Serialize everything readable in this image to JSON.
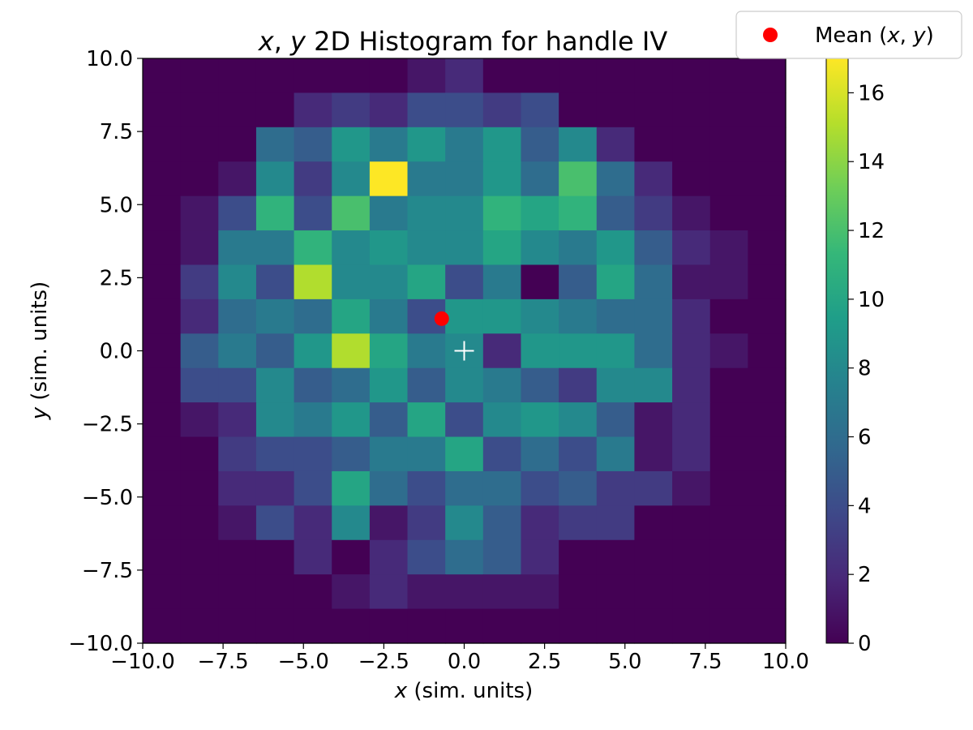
{
  "chart_data": {
    "type": "heatmap",
    "title_parts": [
      "x",
      ", ",
      "y",
      " 2D Histogram for handle IV"
    ],
    "xlabel_parts": [
      "x",
      " (sim. units)"
    ],
    "ylabel_parts": [
      "y",
      " (sim. units)"
    ],
    "xlim": [
      -10,
      10
    ],
    "ylim": [
      -10,
      10
    ],
    "x_bins": 17,
    "y_bins": 17,
    "x_ticks": [
      "−10.0",
      "−7.5",
      "−5.0",
      "−2.5",
      "0.0",
      "2.5",
      "5.0",
      "7.5",
      "10.0"
    ],
    "y_ticks": [
      "−10.0",
      "−7.5",
      "−5.0",
      "−2.5",
      "0.0",
      "2.5",
      "5.0",
      "7.5",
      "10.0"
    ],
    "colorbar_range": [
      0,
      17
    ],
    "colorbar_ticks": [
      "0",
      "2",
      "4",
      "6",
      "8",
      "10",
      "12",
      "14",
      "16"
    ],
    "colormap": "viridis",
    "counts_note": "rows listed from top (y=10) to bottom (y=-10), columns left (x=-10) to right (x=10)",
    "counts": [
      [
        0,
        0,
        0,
        0,
        0,
        0,
        0,
        1,
        2,
        0,
        0,
        0,
        0,
        0,
        0,
        0,
        0
      ],
      [
        0,
        0,
        0,
        0,
        2,
        3,
        2,
        4,
        4,
        3,
        4,
        0,
        0,
        0,
        0,
        0,
        0
      ],
      [
        0,
        0,
        0,
        6,
        5,
        9,
        7,
        9,
        7,
        9,
        5,
        8,
        2,
        0,
        0,
        0,
        0
      ],
      [
        0,
        0,
        1,
        8,
        3,
        8,
        17,
        7,
        7,
        9,
        6,
        12,
        6,
        2,
        0,
        0,
        0
      ],
      [
        0,
        1,
        4,
        11,
        4,
        12,
        7,
        8,
        8,
        11,
        10,
        11,
        5,
        3,
        1,
        0,
        0
      ],
      [
        0,
        1,
        7,
        7,
        11,
        8,
        9,
        8,
        8,
        10,
        8,
        7,
        9,
        5,
        2,
        1,
        0
      ],
      [
        0,
        3,
        8,
        4,
        15,
        8,
        8,
        10,
        4,
        7,
        0,
        5,
        10,
        6,
        1,
        1,
        0
      ],
      [
        0,
        2,
        6,
        7,
        6,
        10,
        7,
        4,
        9,
        9,
        8,
        7,
        6,
        6,
        2,
        0,
        0
      ],
      [
        0,
        5,
        7,
        5,
        9,
        15,
        10,
        7,
        8,
        2,
        9,
        9,
        9,
        6,
        2,
        1,
        0
      ],
      [
        0,
        4,
        4,
        8,
        5,
        6,
        9,
        5,
        8,
        7,
        5,
        3,
        8,
        8,
        2,
        0,
        0
      ],
      [
        0,
        1,
        2,
        8,
        7,
        9,
        5,
        10,
        4,
        8,
        9,
        8,
        5,
        1,
        2,
        0,
        0
      ],
      [
        0,
        0,
        3,
        4,
        4,
        5,
        7,
        7,
        10,
        4,
        6,
        4,
        7,
        1,
        2,
        0,
        0
      ],
      [
        0,
        0,
        2,
        2,
        4,
        10,
        6,
        4,
        6,
        6,
        4,
        5,
        3,
        3,
        1,
        0,
        0
      ],
      [
        0,
        0,
        1,
        4,
        2,
        8,
        1,
        3,
        8,
        5,
        2,
        3,
        3,
        0,
        0,
        0,
        0
      ],
      [
        0,
        0,
        0,
        0,
        2,
        0,
        2,
        4,
        6,
        5,
        2,
        0,
        0,
        0,
        0,
        0,
        0
      ],
      [
        0,
        0,
        0,
        0,
        0,
        1,
        2,
        1,
        1,
        1,
        1,
        0,
        0,
        0,
        0,
        0,
        0
      ],
      [
        0,
        0,
        0,
        0,
        0,
        0,
        0,
        0,
        0,
        0,
        0,
        0,
        0,
        0,
        0,
        0,
        0
      ]
    ],
    "mean_point": {
      "x": -0.7,
      "y": 1.1,
      "color": "#ff0000"
    },
    "center_marker": {
      "x": 0,
      "y": 0,
      "symbol": "+",
      "color": "#ffffff"
    },
    "legend": {
      "entries": [
        {
          "label_parts": [
            "Mean (",
            "x",
            ", ",
            "y",
            ")"
          ],
          "marker": "circle",
          "color": "#ff0000"
        }
      ],
      "placement": "top-right, outside axes"
    },
    "grid": false
  }
}
